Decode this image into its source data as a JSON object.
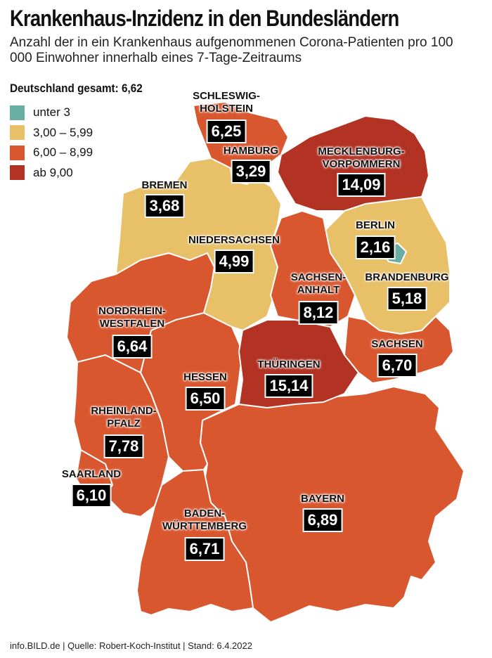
{
  "title": "Krankenhaus-Inzidenz in den Bundesländern",
  "subtitle": "Anzahl der in ein Krankenhaus aufgenommenen Corona-Patienten pro 100 000 Einwohner innerhalb eines 7-Tage-Zeitraums",
  "total": "Deutschland gesamt: 6,62",
  "legend": [
    {
      "label": "unter 3",
      "color": "#6aada2"
    },
    {
      "label": "3,00 – 5,99",
      "color": "#e8c068"
    },
    {
      "label": "6,00 – 8,99",
      "color": "#d9572f"
    },
    {
      "label": "ab 9,00",
      "color": "#b23224"
    }
  ],
  "states": {
    "sh": {
      "name": "SCHLESWIG-\nHOLSTEIN",
      "value": "6,25"
    },
    "hh": {
      "name": "HAMBURG",
      "value": "3,29"
    },
    "mv": {
      "name": "MECKLENBURG-\nVORPOMMERN",
      "value": "14,09"
    },
    "hb": {
      "name": "BREMEN",
      "value": "3,68"
    },
    "ni": {
      "name": "NIEDERSACHSEN",
      "value": "4,99"
    },
    "be": {
      "name": "BERLIN",
      "value": "2,16"
    },
    "bb": {
      "name": "BRANDENBURG",
      "value": "5,18"
    },
    "st": {
      "name": "SACHSEN-\nANHALT",
      "value": "8,12"
    },
    "nw": {
      "name": "NORDRHEIN-\nWESTFALEN",
      "value": "6,64"
    },
    "sn": {
      "name": "SACHSEN",
      "value": "6,70"
    },
    "th": {
      "name": "THÜRINGEN",
      "value": "15,14"
    },
    "he": {
      "name": "HESSEN",
      "value": "6,50"
    },
    "rp": {
      "name": "RHEINLAND-\nPFALZ",
      "value": "7,78"
    },
    "sl": {
      "name": "SAARLAND",
      "value": "6,10"
    },
    "by": {
      "name": "BAYERN",
      "value": "6,89"
    },
    "bw": {
      "name": "BADEN-\nWÜRTTEMBERG",
      "value": "6,71"
    }
  },
  "footer": "info.BILD.de | Quelle: Robert-Koch-Institut | Stand: 6.4.2022"
}
